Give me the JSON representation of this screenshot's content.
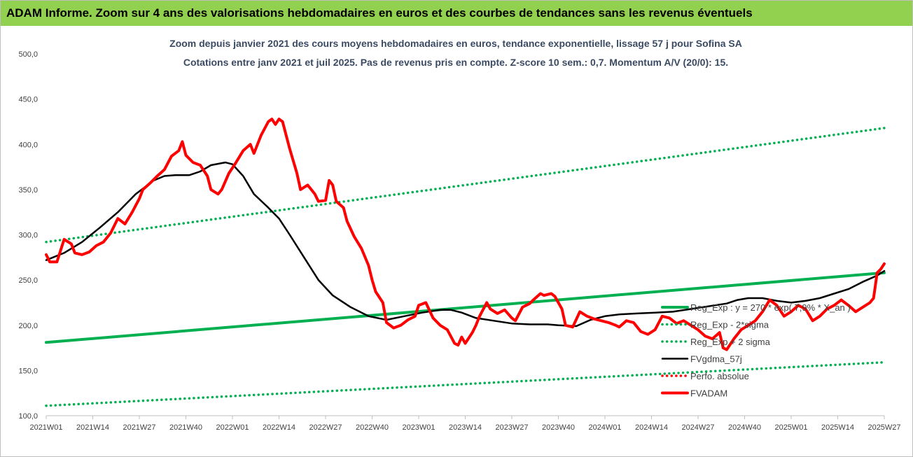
{
  "header": {
    "title": "ADAM Informe. Zoom sur 4 ans des valorisations hebdomadaires en euros et des courbes de tendances sans les revenus éventuels"
  },
  "chart_data": {
    "type": "line",
    "title": "Zoom depuis janvier 2021 des cours moyens hebdomadaires en euros, tendance exponentielle, lissage 57 j pour Sofina SA",
    "subtitle": "Cotations entre janv 2021 et juil 2025. Pas de revenus pris en compte. Z-score 10 sem.: 0,7. Momentum A/V (20/0): 15.",
    "xlabel": "",
    "ylabel": "",
    "ylim": [
      100,
      500
    ],
    "yticks": [
      "100,0",
      "150,0",
      "200,0",
      "250,0",
      "300,0",
      "350,0",
      "400,0",
      "450,0",
      "500,0"
    ],
    "xlim": [
      0,
      234
    ],
    "xticks": [
      {
        "label": "2021W01",
        "week": 0
      },
      {
        "label": "2021W14",
        "week": 13
      },
      {
        "label": "2021W27",
        "week": 26
      },
      {
        "label": "2021W40",
        "week": 39
      },
      {
        "label": "2022W01",
        "week": 52
      },
      {
        "label": "2022W14",
        "week": 65
      },
      {
        "label": "2022W27",
        "week": 78
      },
      {
        "label": "2022W40",
        "week": 91
      },
      {
        "label": "2023W01",
        "week": 104
      },
      {
        "label": "2023W14",
        "week": 117
      },
      {
        "label": "2023W27",
        "week": 130
      },
      {
        "label": "2023W40",
        "week": 143
      },
      {
        "label": "2024W01",
        "week": 156
      },
      {
        "label": "2024W14",
        "week": 169
      },
      {
        "label": "2024W27",
        "week": 182
      },
      {
        "label": "2024W40",
        "week": 195
      },
      {
        "label": "2025W01",
        "week": 208
      },
      {
        "label": "2025W14",
        "week": 221
      },
      {
        "label": "2025W27",
        "week": 234
      }
    ],
    "grid": false,
    "legend_position": "bottom-right",
    "series": [
      {
        "name": "Reg_Exp : y = 270 * exp( 7,9% * X_an )",
        "color": "#00b050",
        "style": "solid-thick",
        "points": [
          [
            0,
            181
          ],
          [
            234,
            258
          ]
        ]
      },
      {
        "name": "Reg_Exp - 2*sigma",
        "color": "#00b050",
        "style": "dotted",
        "points": [
          [
            0,
            111
          ],
          [
            234,
            159
          ]
        ]
      },
      {
        "name": "Reg_Exp + 2 sigma",
        "color": "#00b050",
        "style": "dotted",
        "points": [
          [
            0,
            292
          ],
          [
            234,
            418
          ]
        ]
      },
      {
        "name": "FVgdma_57j",
        "color": "#000000",
        "style": "solid",
        "points": [
          [
            0,
            272
          ],
          [
            5,
            280
          ],
          [
            10,
            292
          ],
          [
            15,
            308
          ],
          [
            20,
            325
          ],
          [
            25,
            345
          ],
          [
            30,
            360
          ],
          [
            33,
            365
          ],
          [
            36,
            366
          ],
          [
            40,
            366
          ],
          [
            43,
            370
          ],
          [
            46,
            377
          ],
          [
            50,
            380
          ],
          [
            52,
            378
          ],
          [
            55,
            365
          ],
          [
            58,
            345
          ],
          [
            62,
            330
          ],
          [
            65,
            318
          ],
          [
            68,
            300
          ],
          [
            72,
            275
          ],
          [
            76,
            250
          ],
          [
            80,
            233
          ],
          [
            85,
            220
          ],
          [
            90,
            210
          ],
          [
            95,
            206
          ],
          [
            100,
            210
          ],
          [
            105,
            214
          ],
          [
            110,
            217
          ],
          [
            113,
            217
          ],
          [
            116,
            214
          ],
          [
            120,
            208
          ],
          [
            125,
            205
          ],
          [
            130,
            202
          ],
          [
            135,
            201
          ],
          [
            140,
            201
          ],
          [
            143,
            200
          ],
          [
            148,
            199
          ],
          [
            152,
            206
          ],
          [
            156,
            210
          ],
          [
            160,
            212
          ],
          [
            165,
            213
          ],
          [
            170,
            214
          ],
          [
            175,
            215
          ],
          [
            180,
            218
          ],
          [
            185,
            221
          ],
          [
            190,
            224
          ],
          [
            193,
            228
          ],
          [
            196,
            230
          ],
          [
            200,
            230
          ],
          [
            204,
            227
          ],
          [
            208,
            225
          ],
          [
            212,
            227
          ],
          [
            216,
            230
          ],
          [
            220,
            235
          ],
          [
            224,
            240
          ],
          [
            228,
            248
          ],
          [
            232,
            255
          ],
          [
            234,
            260
          ]
        ]
      },
      {
        "name": "Perfo. absolue",
        "color": "#ff0000",
        "style": "dotted",
        "points": []
      },
      {
        "name": "FVADAM",
        "color": "#ff0000",
        "style": "solid-thick",
        "points": [
          [
            0,
            278
          ],
          [
            1,
            270
          ],
          [
            3,
            270
          ],
          [
            5,
            295
          ],
          [
            7,
            290
          ],
          [
            8,
            280
          ],
          [
            10,
            278
          ],
          [
            12,
            281
          ],
          [
            14,
            288
          ],
          [
            16,
            292
          ],
          [
            18,
            302
          ],
          [
            20,
            318
          ],
          [
            22,
            312
          ],
          [
            24,
            325
          ],
          [
            26,
            340
          ],
          [
            27,
            350
          ],
          [
            29,
            357
          ],
          [
            31,
            365
          ],
          [
            33,
            372
          ],
          [
            35,
            387
          ],
          [
            37,
            393
          ],
          [
            38,
            403
          ],
          [
            39,
            388
          ],
          [
            41,
            380
          ],
          [
            43,
            377
          ],
          [
            45,
            365
          ],
          [
            46,
            350
          ],
          [
            48,
            345
          ],
          [
            49,
            350
          ],
          [
            51,
            368
          ],
          [
            53,
            380
          ],
          [
            55,
            393
          ],
          [
            57,
            400
          ],
          [
            58,
            390
          ],
          [
            60,
            410
          ],
          [
            62,
            425
          ],
          [
            63,
            428
          ],
          [
            64,
            422
          ],
          [
            65,
            428
          ],
          [
            66,
            425
          ],
          [
            68,
            395
          ],
          [
            70,
            368
          ],
          [
            71,
            350
          ],
          [
            73,
            355
          ],
          [
            75,
            345
          ],
          [
            76,
            337
          ],
          [
            78,
            338
          ],
          [
            79,
            360
          ],
          [
            80,
            355
          ],
          [
            81,
            337
          ],
          [
            83,
            330
          ],
          [
            84,
            315
          ],
          [
            86,
            298
          ],
          [
            88,
            285
          ],
          [
            90,
            266
          ],
          [
            91,
            250
          ],
          [
            92,
            237
          ],
          [
            94,
            225
          ],
          [
            95,
            203
          ],
          [
            97,
            197
          ],
          [
            99,
            200
          ],
          [
            101,
            206
          ],
          [
            103,
            210
          ],
          [
            104,
            222
          ],
          [
            106,
            225
          ],
          [
            108,
            208
          ],
          [
            110,
            200
          ],
          [
            112,
            195
          ],
          [
            114,
            180
          ],
          [
            115,
            178
          ],
          [
            116,
            187
          ],
          [
            117,
            180
          ],
          [
            119,
            192
          ],
          [
            120,
            200
          ],
          [
            121,
            210
          ],
          [
            123,
            225
          ],
          [
            124,
            218
          ],
          [
            126,
            213
          ],
          [
            128,
            217
          ],
          [
            130,
            208
          ],
          [
            131,
            205
          ],
          [
            133,
            220
          ],
          [
            135,
            224
          ],
          [
            136,
            228
          ],
          [
            138,
            235
          ],
          [
            139,
            233
          ],
          [
            141,
            235
          ],
          [
            142,
            232
          ],
          [
            144,
            218
          ],
          [
            145,
            200
          ],
          [
            147,
            198
          ],
          [
            149,
            215
          ],
          [
            151,
            210
          ],
          [
            153,
            207
          ],
          [
            155,
            205
          ],
          [
            157,
            203
          ],
          [
            159,
            200
          ],
          [
            160,
            198
          ],
          [
            162,
            205
          ],
          [
            164,
            203
          ],
          [
            166,
            193
          ],
          [
            168,
            190
          ],
          [
            170,
            195
          ],
          [
            172,
            210
          ],
          [
            174,
            208
          ],
          [
            176,
            202
          ],
          [
            178,
            205
          ],
          [
            180,
            200
          ],
          [
            182,
            195
          ],
          [
            184,
            188
          ],
          [
            186,
            185
          ],
          [
            188,
            192
          ],
          [
            189,
            175
          ],
          [
            190,
            173
          ],
          [
            192,
            185
          ],
          [
            194,
            195
          ],
          [
            196,
            200
          ],
          [
            198,
            205
          ],
          [
            200,
            215
          ],
          [
            202,
            228
          ],
          [
            204,
            222
          ],
          [
            206,
            210
          ],
          [
            208,
            215
          ],
          [
            210,
            222
          ],
          [
            212,
            218
          ],
          [
            214,
            205
          ],
          [
            216,
            210
          ],
          [
            218,
            218
          ],
          [
            220,
            222
          ],
          [
            222,
            228
          ],
          [
            224,
            222
          ],
          [
            226,
            215
          ],
          [
            228,
            220
          ],
          [
            230,
            225
          ],
          [
            231,
            230
          ],
          [
            232,
            258
          ],
          [
            233,
            262
          ],
          [
            234,
            268
          ]
        ]
      }
    ]
  }
}
